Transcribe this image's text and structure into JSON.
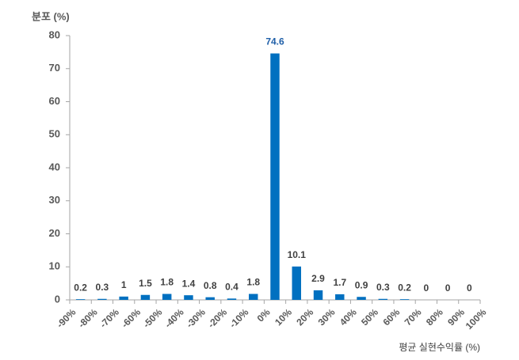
{
  "chart_data": {
    "type": "histogram",
    "y_label": "분포 (%)",
    "x_label": "평균 실현수익률 (%)",
    "bins": [
      -90,
      -80,
      -70,
      -60,
      -50,
      -40,
      -30,
      -20,
      -10,
      0,
      10,
      20,
      30,
      40,
      50,
      60,
      70,
      80,
      90,
      100
    ],
    "values": [
      0.2,
      0.3,
      1,
      1.5,
      1.8,
      1.4,
      0.8,
      0.4,
      1.8,
      74.6,
      10.1,
      2.9,
      1.7,
      0.9,
      0.3,
      0.2,
      0,
      0,
      0
    ],
    "value_label_colors": [
      "#404040",
      "#404040",
      "#404040",
      "#404040",
      "#404040",
      "#404040",
      "#404040",
      "#404040",
      "#404040",
      "#1f5fa8",
      "#404040",
      "#404040",
      "#404040",
      "#404040",
      "#404040",
      "#404040",
      "#404040",
      "#404040",
      "#404040"
    ],
    "color": "#0070c0",
    "xlim": [
      -90,
      100
    ],
    "xticks": [
      {
        "value": -90,
        "label": "-90%"
      },
      {
        "value": -80,
        "label": "-80%"
      },
      {
        "value": -70,
        "label": "-70%"
      },
      {
        "value": -60,
        "label": "-60%"
      },
      {
        "value": -50,
        "label": "-50%"
      },
      {
        "value": -40,
        "label": "-40%"
      },
      {
        "value": -30,
        "label": "-30%"
      },
      {
        "value": -20,
        "label": "-20%"
      },
      {
        "value": -10,
        "label": "-10%"
      },
      {
        "value": 0,
        "label": "0%"
      },
      {
        "value": 10,
        "label": "10%"
      },
      {
        "value": 20,
        "label": "20%"
      },
      {
        "value": 30,
        "label": "30%"
      },
      {
        "value": 40,
        "label": "40%"
      },
      {
        "value": 50,
        "label": "50%"
      },
      {
        "value": 60,
        "label": "60%"
      },
      {
        "value": 70,
        "label": "70%"
      },
      {
        "value": 80,
        "label": "80%"
      },
      {
        "value": 90,
        "label": "90%"
      },
      {
        "value": 100,
        "label": "100%"
      }
    ],
    "ylim": [
      0,
      80
    ],
    "yticks": [
      0,
      10,
      20,
      30,
      40,
      50,
      60,
      70,
      80
    ]
  }
}
